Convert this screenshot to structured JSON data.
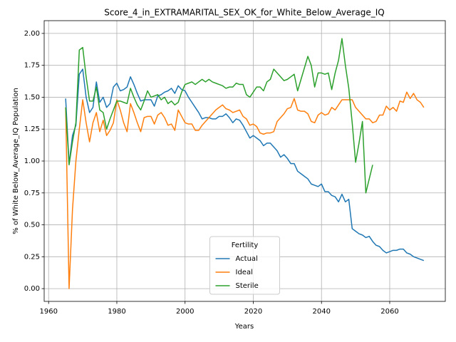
{
  "chart_data": {
    "type": "line",
    "title": "Score_4_in_EXTRAMARITAL_SEX_OK_for_White_Below_Average_IQ",
    "xlabel": "Years",
    "ylabel": "% of White Below_Average_IQ Population",
    "legend_title": "Fertility",
    "legend": "lower center",
    "grid": true,
    "xlim": [
      1958.7,
      2076.3
    ],
    "ylim": [
      -0.1,
      2.1
    ],
    "xticks": [
      1960,
      1980,
      2000,
      2020,
      2040,
      2060
    ],
    "yticks": [
      {
        "value": 0,
        "label": "0.00"
      },
      {
        "value": 0.25,
        "label": "0.25"
      },
      {
        "value": 0.5,
        "label": "0.50"
      },
      {
        "value": 0.75,
        "label": "0.75"
      },
      {
        "value": 1,
        "label": "1.00"
      },
      {
        "value": 1.25,
        "label": "1.25"
      },
      {
        "value": 1.5,
        "label": "1.50"
      },
      {
        "value": 1.75,
        "label": "1.75"
      },
      {
        "value": 2,
        "label": "2.00"
      }
    ],
    "x": [
      1965,
      1966,
      1967,
      1968,
      1969,
      1970,
      1971,
      1972,
      1973,
      1974,
      1975,
      1976,
      1977,
      1978,
      1979,
      1980,
      1981,
      1982,
      1983,
      1984,
      1985,
      1986,
      1987,
      1988,
      1989,
      1990,
      1991,
      1992,
      1993,
      1994,
      1995,
      1996,
      1997,
      1998,
      1999,
      2000,
      2001,
      2002,
      2003,
      2004,
      2005,
      2006,
      2007,
      2008,
      2009,
      2010,
      2011,
      2012,
      2013,
      2014,
      2015,
      2016,
      2017,
      2018,
      2019,
      2020,
      2021,
      2022,
      2023,
      2024,
      2025,
      2026,
      2027,
      2028,
      2029,
      2030,
      2031,
      2032,
      2033,
      2034,
      2035,
      2036,
      2037,
      2038,
      2039,
      2040,
      2041,
      2042,
      2043,
      2044,
      2045,
      2046,
      2047,
      2048,
      2049,
      2050,
      2051,
      2052,
      2053,
      2054,
      2055,
      2056,
      2057,
      2058,
      2059,
      2060,
      2061,
      2062,
      2063,
      2064,
      2065,
      2066,
      2067,
      2068,
      2069,
      2070
    ],
    "series": [
      {
        "name": "Actual",
        "color": "#1f77b4",
        "values": [
          1.49,
          0.98,
          1.2,
          1.28,
          1.68,
          1.72,
          1.5,
          1.38,
          1.42,
          1.62,
          1.46,
          1.5,
          1.42,
          1.45,
          1.58,
          1.61,
          1.55,
          1.56,
          1.58,
          1.66,
          1.6,
          1.53,
          1.47,
          1.48,
          1.48,
          1.48,
          1.43,
          1.51,
          1.52,
          1.54,
          1.55,
          1.57,
          1.53,
          1.59,
          1.56,
          1.55,
          1.5,
          1.46,
          1.42,
          1.38,
          1.33,
          1.34,
          1.34,
          1.33,
          1.33,
          1.35,
          1.35,
          1.37,
          1.34,
          1.3,
          1.33,
          1.32,
          1.28,
          1.23,
          1.18,
          1.2,
          1.18,
          1.16,
          1.12,
          1.14,
          1.14,
          1.11,
          1.08,
          1.03,
          1.05,
          1.02,
          0.98,
          0.98,
          0.92,
          0.9,
          0.88,
          0.86,
          0.82,
          0.81,
          0.8,
          0.82,
          0.76,
          0.76,
          0.73,
          0.72,
          0.68,
          0.74,
          0.68,
          0.7,
          0.47,
          0.45,
          0.43,
          0.42,
          0.4,
          0.41,
          0.37,
          0.34,
          0.33,
          0.3,
          0.28,
          0.29,
          0.3,
          0.3,
          0.31,
          0.31,
          0.28,
          0.27,
          0.25,
          0.24,
          0.23,
          0.22
        ]
      },
      {
        "name": "Ideal",
        "color": "#ff7f0e",
        "values": [
          1.42,
          0.0,
          0.62,
          1.0,
          1.25,
          1.48,
          1.3,
          1.15,
          1.3,
          1.38,
          1.23,
          1.32,
          1.2,
          1.24,
          1.3,
          1.48,
          1.4,
          1.3,
          1.23,
          1.45,
          1.38,
          1.3,
          1.23,
          1.34,
          1.35,
          1.35,
          1.29,
          1.36,
          1.38,
          1.34,
          1.28,
          1.29,
          1.24,
          1.4,
          1.35,
          1.3,
          1.29,
          1.29,
          1.24,
          1.24,
          1.28,
          1.31,
          1.34,
          1.37,
          1.4,
          1.42,
          1.44,
          1.41,
          1.4,
          1.38,
          1.39,
          1.4,
          1.35,
          1.33,
          1.28,
          1.29,
          1.27,
          1.22,
          1.21,
          1.22,
          1.22,
          1.23,
          1.31,
          1.34,
          1.37,
          1.41,
          1.42,
          1.49,
          1.4,
          1.39,
          1.39,
          1.37,
          1.31,
          1.3,
          1.36,
          1.38,
          1.36,
          1.37,
          1.42,
          1.4,
          1.44,
          1.48,
          1.48,
          1.48,
          1.48,
          1.42,
          1.39,
          1.36,
          1.33,
          1.33,
          1.3,
          1.31,
          1.36,
          1.36,
          1.43,
          1.4,
          1.42,
          1.39,
          1.47,
          1.46,
          1.54,
          1.49,
          1.53,
          1.48,
          1.46,
          1.42
        ]
      },
      {
        "name": "Sterile",
        "color": "#2ca02c",
        "values": [
          1.42,
          0.97,
          1.15,
          1.3,
          1.87,
          1.89,
          1.66,
          1.47,
          1.47,
          1.58,
          1.4,
          1.38,
          1.25,
          1.33,
          1.4,
          1.47,
          1.47,
          1.46,
          1.45,
          1.57,
          1.5,
          1.44,
          1.4,
          1.47,
          1.55,
          1.5,
          1.51,
          1.52,
          1.48,
          1.5,
          1.45,
          1.47,
          1.44,
          1.46,
          1.54,
          1.6,
          1.61,
          1.62,
          1.6,
          1.62,
          1.64,
          1.62,
          1.64,
          1.62,
          1.61,
          1.6,
          1.59,
          1.57,
          1.58,
          1.58,
          1.61,
          1.6,
          1.6,
          1.52,
          1.5,
          1.54,
          1.58,
          1.58,
          1.55,
          1.62,
          1.64,
          1.72,
          1.69,
          1.66,
          1.63,
          1.64,
          1.66,
          1.68,
          1.55,
          1.64,
          1.73,
          1.82,
          1.75,
          1.58,
          1.69,
          1.69,
          1.68,
          1.69,
          1.56,
          1.69,
          1.79,
          1.96,
          1.75,
          1.57,
          1.3,
          0.99,
          1.14,
          1.31,
          0.75,
          0.86,
          0.97,
          null,
          null,
          null,
          null,
          null,
          null,
          null,
          null,
          null,
          null,
          null,
          null,
          null,
          null,
          null
        ]
      }
    ]
  }
}
